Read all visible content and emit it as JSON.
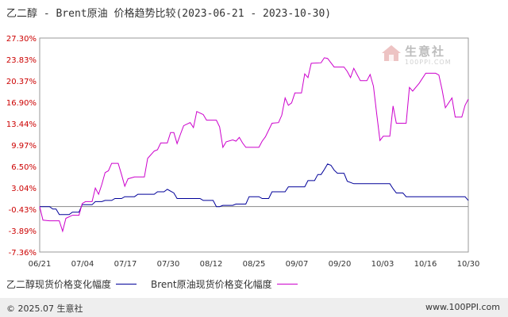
{
  "chart_data": {
    "type": "line",
    "title": "乙二醇 - Brent原油 价格趋势比较(2023-06-21 - 2023-10-30)",
    "x_start": "2023-06-21",
    "x_end": "2023-10-30",
    "x_ticks": [
      "06/21",
      "07/04",
      "07/17",
      "07/30",
      "08/12",
      "08/25",
      "09/07",
      "09/20",
      "10/03",
      "10/16",
      "10/30"
    ],
    "y_ticks": [
      "27.30%",
      "23.83%",
      "20.37%",
      "16.90%",
      "13.44%",
      "9.97%",
      "6.50%",
      "3.04%",
      "-0.43%",
      "-3.89%",
      "-7.36%"
    ],
    "y_tick_values": [
      27.3,
      23.83,
      20.37,
      16.9,
      13.44,
      9.97,
      6.5,
      3.04,
      -0.43,
      -3.89,
      -7.36
    ],
    "ylim": [
      -7.36,
      27.3
    ],
    "grid": true,
    "legend_position": "bottom",
    "series": [
      {
        "name": "乙二醇现货价格变化幅度",
        "color": "#000099",
        "points": [
          [
            "2023-06-21",
            0.0
          ],
          [
            "2023-06-24",
            0.0
          ],
          [
            "2023-06-25",
            -0.4
          ],
          [
            "2023-06-26",
            -0.4
          ],
          [
            "2023-06-27",
            -1.3
          ],
          [
            "2023-06-30",
            -1.3
          ],
          [
            "2023-07-01",
            -0.9
          ],
          [
            "2023-07-03",
            -0.9
          ],
          [
            "2023-07-04",
            0.3
          ],
          [
            "2023-07-07",
            0.3
          ],
          [
            "2023-07-08",
            0.8
          ],
          [
            "2023-07-10",
            0.8
          ],
          [
            "2023-07-11",
            1.0
          ],
          [
            "2023-07-13",
            1.0
          ],
          [
            "2023-07-14",
            1.3
          ],
          [
            "2023-07-16",
            1.3
          ],
          [
            "2023-07-17",
            1.6
          ],
          [
            "2023-07-20",
            1.6
          ],
          [
            "2023-07-21",
            2.0
          ],
          [
            "2023-07-26",
            2.0
          ],
          [
            "2023-07-27",
            2.4
          ],
          [
            "2023-07-29",
            2.4
          ],
          [
            "2023-07-30",
            2.8
          ],
          [
            "2023-08-01",
            2.2
          ],
          [
            "2023-08-02",
            1.3
          ],
          [
            "2023-08-09",
            1.3
          ],
          [
            "2023-08-10",
            1.0
          ],
          [
            "2023-08-13",
            1.0
          ],
          [
            "2023-08-14",
            0.0
          ],
          [
            "2023-08-15",
            0.0
          ],
          [
            "2023-08-16",
            0.2
          ],
          [
            "2023-08-19",
            0.2
          ],
          [
            "2023-08-20",
            0.4
          ],
          [
            "2023-08-23",
            0.4
          ],
          [
            "2023-08-24",
            1.6
          ],
          [
            "2023-08-27",
            1.6
          ],
          [
            "2023-08-28",
            1.3
          ],
          [
            "2023-08-30",
            1.3
          ],
          [
            "2023-08-31",
            2.4
          ],
          [
            "2023-09-04",
            2.4
          ],
          [
            "2023-09-05",
            3.2
          ],
          [
            "2023-09-10",
            3.2
          ],
          [
            "2023-09-11",
            4.2
          ],
          [
            "2023-09-13",
            4.2
          ],
          [
            "2023-09-14",
            5.2
          ],
          [
            "2023-09-15",
            5.2
          ],
          [
            "2023-09-16",
            6.0
          ],
          [
            "2023-09-17",
            6.9
          ],
          [
            "2023-09-18",
            6.7
          ],
          [
            "2023-09-19",
            5.9
          ],
          [
            "2023-09-20",
            5.4
          ],
          [
            "2023-09-22",
            5.4
          ],
          [
            "2023-09-23",
            4.1
          ],
          [
            "2023-09-25",
            3.7
          ],
          [
            "2023-10-06",
            3.7
          ],
          [
            "2023-10-07",
            2.9
          ],
          [
            "2023-10-08",
            2.2
          ],
          [
            "2023-10-10",
            2.2
          ],
          [
            "2023-10-11",
            1.6
          ],
          [
            "2023-10-27",
            1.6
          ],
          [
            "2023-10-29",
            1.6
          ],
          [
            "2023-10-30",
            1.0
          ]
        ]
      },
      {
        "name": "Brent原油现货价格变化幅度",
        "color": "#cc00cc",
        "points": [
          [
            "2023-06-21",
            0.0
          ],
          [
            "2023-06-22",
            -2.2
          ],
          [
            "2023-06-24",
            -2.3
          ],
          [
            "2023-06-27",
            -2.3
          ],
          [
            "2023-06-28",
            -4.0
          ],
          [
            "2023-06-29",
            -1.9
          ],
          [
            "2023-07-01",
            -1.4
          ],
          [
            "2023-07-03",
            -1.4
          ],
          [
            "2023-07-04",
            0.5
          ],
          [
            "2023-07-05",
            0.8
          ],
          [
            "2023-07-07",
            0.8
          ],
          [
            "2023-07-08",
            3.0
          ],
          [
            "2023-07-09",
            2.0
          ],
          [
            "2023-07-10",
            3.6
          ],
          [
            "2023-07-11",
            5.5
          ],
          [
            "2023-07-12",
            5.8
          ],
          [
            "2023-07-13",
            7.0
          ],
          [
            "2023-07-15",
            7.0
          ],
          [
            "2023-07-16",
            5.2
          ],
          [
            "2023-07-17",
            3.3
          ],
          [
            "2023-07-18",
            4.5
          ],
          [
            "2023-07-20",
            4.8
          ],
          [
            "2023-07-23",
            4.8
          ],
          [
            "2023-07-24",
            7.8
          ],
          [
            "2023-07-26",
            9.0
          ],
          [
            "2023-07-27",
            9.2
          ],
          [
            "2023-07-28",
            10.3
          ],
          [
            "2023-07-30",
            10.3
          ],
          [
            "2023-07-31",
            12.0
          ],
          [
            "2023-08-01",
            12.0
          ],
          [
            "2023-08-02",
            10.2
          ],
          [
            "2023-08-03",
            11.7
          ],
          [
            "2023-08-04",
            13.1
          ],
          [
            "2023-08-06",
            13.6
          ],
          [
            "2023-08-07",
            12.8
          ],
          [
            "2023-08-08",
            15.4
          ],
          [
            "2023-08-10",
            14.9
          ],
          [
            "2023-08-11",
            14.0
          ],
          [
            "2023-08-14",
            14.0
          ],
          [
            "2023-08-15",
            12.9
          ],
          [
            "2023-08-16",
            9.6
          ],
          [
            "2023-08-17",
            10.5
          ],
          [
            "2023-08-19",
            10.8
          ],
          [
            "2023-08-20",
            10.6
          ],
          [
            "2023-08-21",
            11.2
          ],
          [
            "2023-08-22",
            10.3
          ],
          [
            "2023-08-23",
            9.6
          ],
          [
            "2023-08-27",
            9.6
          ],
          [
            "2023-08-28",
            10.6
          ],
          [
            "2023-08-29",
            11.3
          ],
          [
            "2023-08-31",
            13.5
          ],
          [
            "2023-09-02",
            13.6
          ],
          [
            "2023-09-03",
            14.8
          ],
          [
            "2023-09-04",
            17.6
          ],
          [
            "2023-09-05",
            16.4
          ],
          [
            "2023-09-06",
            16.8
          ],
          [
            "2023-09-07",
            18.4
          ],
          [
            "2023-09-09",
            18.4
          ],
          [
            "2023-09-10",
            21.5
          ],
          [
            "2023-09-11",
            20.9
          ],
          [
            "2023-09-12",
            23.2
          ],
          [
            "2023-09-15",
            23.3
          ],
          [
            "2023-09-16",
            24.1
          ],
          [
            "2023-09-17",
            24.0
          ],
          [
            "2023-09-18",
            23.3
          ],
          [
            "2023-09-19",
            22.6
          ],
          [
            "2023-09-22",
            22.6
          ],
          [
            "2023-09-23",
            21.9
          ],
          [
            "2023-09-24",
            20.9
          ],
          [
            "2023-09-25",
            22.4
          ],
          [
            "2023-09-26",
            21.4
          ],
          [
            "2023-09-27",
            20.4
          ],
          [
            "2023-09-29",
            20.4
          ],
          [
            "2023-09-30",
            21.4
          ],
          [
            "2023-10-01",
            19.5
          ],
          [
            "2023-10-02",
            15.0
          ],
          [
            "2023-10-03",
            10.7
          ],
          [
            "2023-10-04",
            11.4
          ],
          [
            "2023-10-06",
            11.4
          ],
          [
            "2023-10-07",
            16.3
          ],
          [
            "2023-10-08",
            13.5
          ],
          [
            "2023-10-11",
            13.5
          ],
          [
            "2023-10-12",
            19.3
          ],
          [
            "2023-10-13",
            18.7
          ],
          [
            "2023-10-15",
            20.0
          ],
          [
            "2023-10-17",
            21.6
          ],
          [
            "2023-10-20",
            21.6
          ],
          [
            "2023-10-21",
            21.3
          ],
          [
            "2023-10-22",
            18.9
          ],
          [
            "2023-10-23",
            16.0
          ],
          [
            "2023-10-25",
            17.6
          ],
          [
            "2023-10-26",
            14.5
          ],
          [
            "2023-10-28",
            14.5
          ],
          [
            "2023-10-29",
            16.4
          ],
          [
            "2023-10-30",
            17.4
          ]
        ]
      }
    ]
  },
  "legend": [
    {
      "label": "乙二醇现货价格变化幅度",
      "color": "#000099"
    },
    {
      "label": "Brent原油现货价格变化幅度",
      "color": "#cc00cc"
    }
  ],
  "watermark": {
    "name": "生意社",
    "url": "100PPI.COM"
  },
  "footer": {
    "left": "© 2025.07 生意社",
    "right": "www.100PPI.com"
  }
}
